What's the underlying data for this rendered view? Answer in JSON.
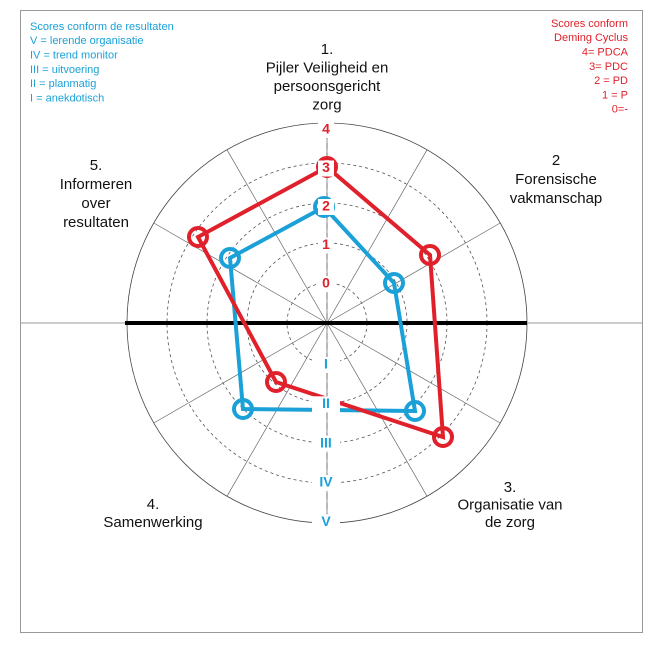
{
  "legend_left": {
    "lines": [
      "Scores conform de resultaten",
      "V = lerende organisatie",
      "IV = trend monitor",
      "III = uitvoering",
      "II = planmatig",
      "I = anekdotisch"
    ]
  },
  "legend_right": {
    "lines": [
      "Scores conform",
      "Deming Cyclus",
      "4= PDCA",
      "3= PDC",
      "2 = PD",
      "1 = P",
      "0=-"
    ]
  },
  "axes": [
    {
      "lines": [
        "1.",
        "Pijler Veiligheid en",
        "persoonsgericht",
        "zorg"
      ]
    },
    {
      "lines": [
        "2",
        "Forensische",
        "vakmanschap"
      ]
    },
    {
      "lines": [
        "3.",
        "Organisatie van",
        "de zorg"
      ]
    },
    {
      "lines": [
        "4.",
        "Samenwerking"
      ]
    },
    {
      "lines": [
        "5.",
        "Informeren",
        "over",
        "resultaten"
      ]
    }
  ],
  "scale_red": [
    "0",
    "1",
    "2",
    "3",
    "4"
  ],
  "scale_blue": [
    "I",
    "II",
    "III",
    "IV",
    "V"
  ]
}
